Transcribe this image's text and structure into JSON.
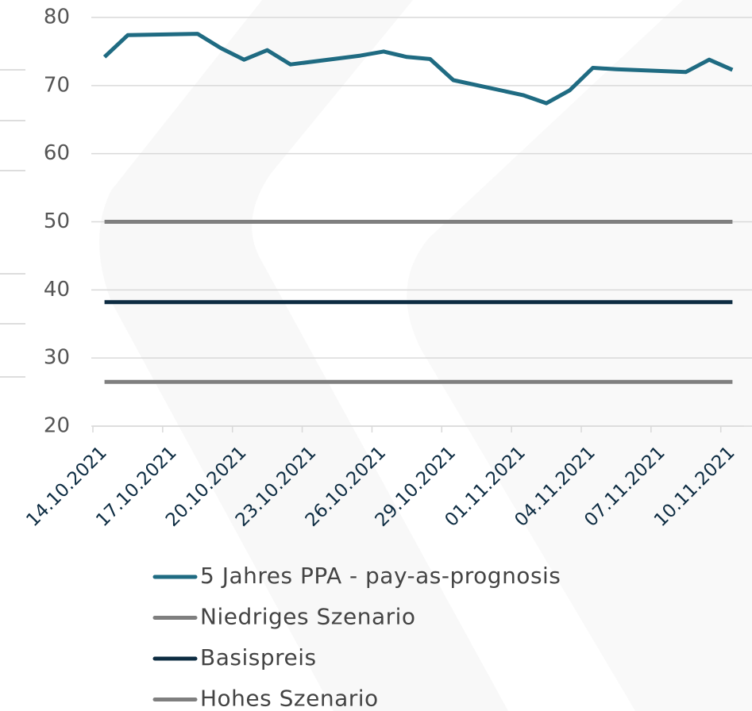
{
  "chart_data": {
    "type": "line",
    "x": [
      "14.10.2021",
      "15.10.2021",
      "18.10.2021",
      "19.10.2021",
      "20.10.2021",
      "21.10.2021",
      "22.10.2021",
      "25.10.2021",
      "26.10.2021",
      "27.10.2021",
      "28.10.2021",
      "29.10.2021",
      "01.11.2021",
      "02.11.2021",
      "03.11.2021",
      "04.11.2021",
      "05.11.2021",
      "08.11.2021",
      "09.11.2021",
      "10.11.2021"
    ],
    "series": [
      {
        "name": "5 Jahres PPA - pay-as-prognosis",
        "color": "#1f6b82",
        "values": [
          74.2,
          77.4,
          77.6,
          75.5,
          73.8,
          75.2,
          73.1,
          74.4,
          75.0,
          74.2,
          73.9,
          70.8,
          68.6,
          67.4,
          69.3,
          72.6,
          72.4,
          72.0,
          73.8,
          72.3
        ]
      },
      {
        "name": "Niedriges Szenario",
        "color": "#7f7f7f",
        "values": [
          50,
          50,
          50,
          50,
          50,
          50,
          50,
          50,
          50,
          50,
          50,
          50,
          50,
          50,
          50,
          50,
          50,
          50,
          50,
          50
        ]
      },
      {
        "name": "Basispreis",
        "color": "#0d2c42",
        "values": [
          38.2,
          38.2,
          38.2,
          38.2,
          38.2,
          38.2,
          38.2,
          38.2,
          38.2,
          38.2,
          38.2,
          38.2,
          38.2,
          38.2,
          38.2,
          38.2,
          38.2,
          38.2,
          38.2,
          38.2
        ]
      },
      {
        "name": "Hohes Szenario",
        "color": "#7f7f7f",
        "values": [
          26.5,
          26.5,
          26.5,
          26.5,
          26.5,
          26.5,
          26.5,
          26.5,
          26.5,
          26.5,
          26.5,
          26.5,
          26.5,
          26.5,
          26.5,
          26.5,
          26.5,
          26.5,
          26.5,
          26.5
        ]
      }
    ],
    "xlim": [
      "14.10.2021",
      "11.11.2021"
    ],
    "xticks": [
      "14.10.2021",
      "17.10.2021",
      "20.10.2021",
      "23.10.2021",
      "26.10.2021",
      "29.10.2021",
      "01.11.2021",
      "04.11.2021",
      "07.11.2021",
      "10.11.2021"
    ],
    "ylim": [
      20,
      80
    ],
    "yticks": [
      20,
      30,
      40,
      50,
      60,
      70,
      80
    ],
    "grid": true,
    "legend": "bottom"
  }
}
